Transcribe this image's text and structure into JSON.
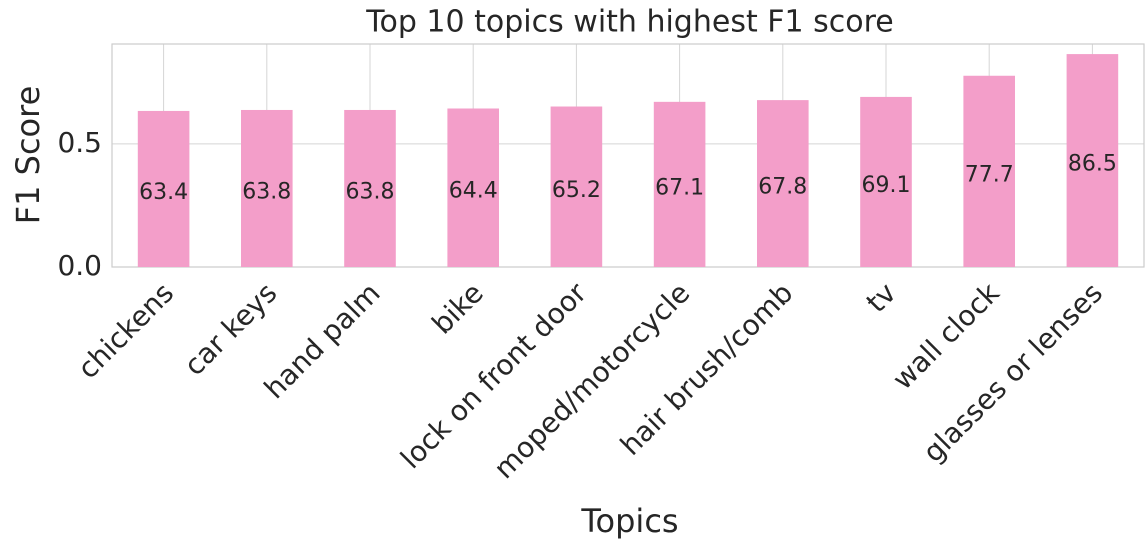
{
  "chart_data": {
    "type": "bar",
    "title": "Top 10 topics with highest F1 score",
    "x_label": "Topics",
    "y_label": "F1 Score",
    "categories": [
      "chickens",
      "car keys",
      "hand palm",
      "bike",
      "lock on front door",
      "moped/motorcycle",
      "hair brush/comb",
      "tv",
      "wall clock",
      "glasses or lenses"
    ],
    "values": [
      0.634,
      0.638,
      0.638,
      0.644,
      0.652,
      0.671,
      0.678,
      0.691,
      0.777,
      0.865
    ],
    "value_labels": [
      "63.4",
      "63.8",
      "63.8",
      "64.4",
      "65.2",
      "67.1",
      "67.8",
      "69.1",
      "77.7",
      "86.5"
    ],
    "color": "#f39ec9",
    "ylim": [
      0,
      0.906
    ],
    "yticks": [
      {
        "value": 0,
        "label": "0.0"
      },
      0.5
    ],
    "grid": true
  }
}
